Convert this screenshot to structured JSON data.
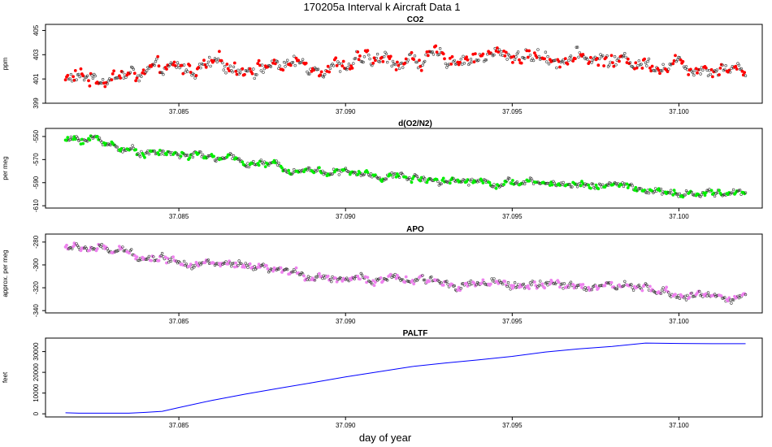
{
  "figure": {
    "title": "170205a   Interval k Aircraft Data 1",
    "xlabel": "day of year"
  },
  "chart_data": [
    {
      "type": "scatter",
      "title": "CO2",
      "ylabel": "ppm",
      "xlim": [
        37.081,
        37.1025
      ],
      "ylim": [
        399,
        405.5
      ],
      "yticks": [
        399,
        401,
        403,
        405
      ],
      "xticks": [
        37.085,
        37.09,
        37.095,
        37.1
      ],
      "xtick_labels": [
        "37.085",
        "37.090",
        "37.095",
        "37.100"
      ],
      "x_range": [
        37.0816,
        37.102
      ],
      "trend": [
        [
          37.0816,
          401.0
        ],
        [
          37.0835,
          401.3
        ],
        [
          37.086,
          402.0
        ],
        [
          37.09,
          402.3
        ],
        [
          37.095,
          403.0
        ],
        [
          37.099,
          402.4
        ],
        [
          37.102,
          401.9
        ]
      ],
      "scatter": 0.7,
      "n_points": 620,
      "color": "#ff0000"
    },
    {
      "type": "scatter",
      "title": "d(O2/N2)",
      "ylabel": "per meg",
      "xlim": [
        37.081,
        37.1025
      ],
      "ylim": [
        -612,
        -543
      ],
      "yticks": [
        -610,
        -590,
        -570,
        -550
      ],
      "xticks": [
        37.085,
        37.09,
        37.095,
        37.1
      ],
      "xtick_labels": [
        "37.085",
        "37.090",
        "37.095",
        "37.100"
      ],
      "x_range": [
        37.0816,
        37.102
      ],
      "trend": [
        [
          37.0816,
          -553
        ],
        [
          37.0825,
          -552
        ],
        [
          37.0835,
          -562
        ],
        [
          37.086,
          -568
        ],
        [
          37.088,
          -576
        ],
        [
          37.091,
          -584
        ],
        [
          37.095,
          -590
        ],
        [
          37.098,
          -592
        ],
        [
          37.1,
          -601
        ],
        [
          37.102,
          -598
        ]
      ],
      "scatter": 3.5,
      "n_points": 620,
      "color": "#00ee00"
    },
    {
      "type": "scatter",
      "title": "APO",
      "ylabel": "approx. per meg",
      "xlim": [
        37.081,
        37.1025
      ],
      "ylim": [
        -342,
        -273
      ],
      "yticks": [
        -340,
        -320,
        -300,
        -280
      ],
      "xticks": [
        37.085,
        37.09,
        37.095,
        37.1
      ],
      "xtick_labels": [
        "37.085",
        "37.090",
        "37.095",
        "37.100"
      ],
      "x_range": [
        37.0816,
        37.102
      ],
      "trend": [
        [
          37.0816,
          -284
        ],
        [
          37.0825,
          -286
        ],
        [
          37.084,
          -292
        ],
        [
          37.086,
          -299
        ],
        [
          37.088,
          -307
        ],
        [
          37.091,
          -313
        ],
        [
          37.095,
          -318
        ],
        [
          37.098,
          -318
        ],
        [
          37.1,
          -326
        ],
        [
          37.102,
          -328
        ]
      ],
      "scatter": 4.0,
      "n_points": 620,
      "color": "#ee82ee"
    },
    {
      "type": "line",
      "title": "PALTF",
      "ylabel": "feet",
      "xlim": [
        37.081,
        37.1025
      ],
      "ylim": [
        -1500,
        36500
      ],
      "yticks": [
        0,
        10000,
        20000,
        30000
      ],
      "xticks": [
        37.085,
        37.09,
        37.095,
        37.1
      ],
      "xtick_labels": [
        "37.085",
        "37.090",
        "37.095",
        "37.100"
      ],
      "points": [
        [
          37.0816,
          500
        ],
        [
          37.082,
          300
        ],
        [
          37.0835,
          300
        ],
        [
          37.084,
          700
        ],
        [
          37.0845,
          1200
        ],
        [
          37.085,
          3000
        ],
        [
          37.086,
          6500
        ],
        [
          37.087,
          9500
        ],
        [
          37.088,
          12300
        ],
        [
          37.089,
          15000
        ],
        [
          37.09,
          17800
        ],
        [
          37.091,
          20300
        ],
        [
          37.092,
          22800
        ],
        [
          37.093,
          24500
        ],
        [
          37.094,
          26000
        ],
        [
          37.095,
          27700
        ],
        [
          37.096,
          29800
        ],
        [
          37.097,
          31300
        ],
        [
          37.098,
          32500
        ],
        [
          37.099,
          34100
        ],
        [
          37.1,
          33900
        ],
        [
          37.101,
          33800
        ],
        [
          37.102,
          33800
        ]
      ],
      "color": "#0000ff"
    }
  ]
}
